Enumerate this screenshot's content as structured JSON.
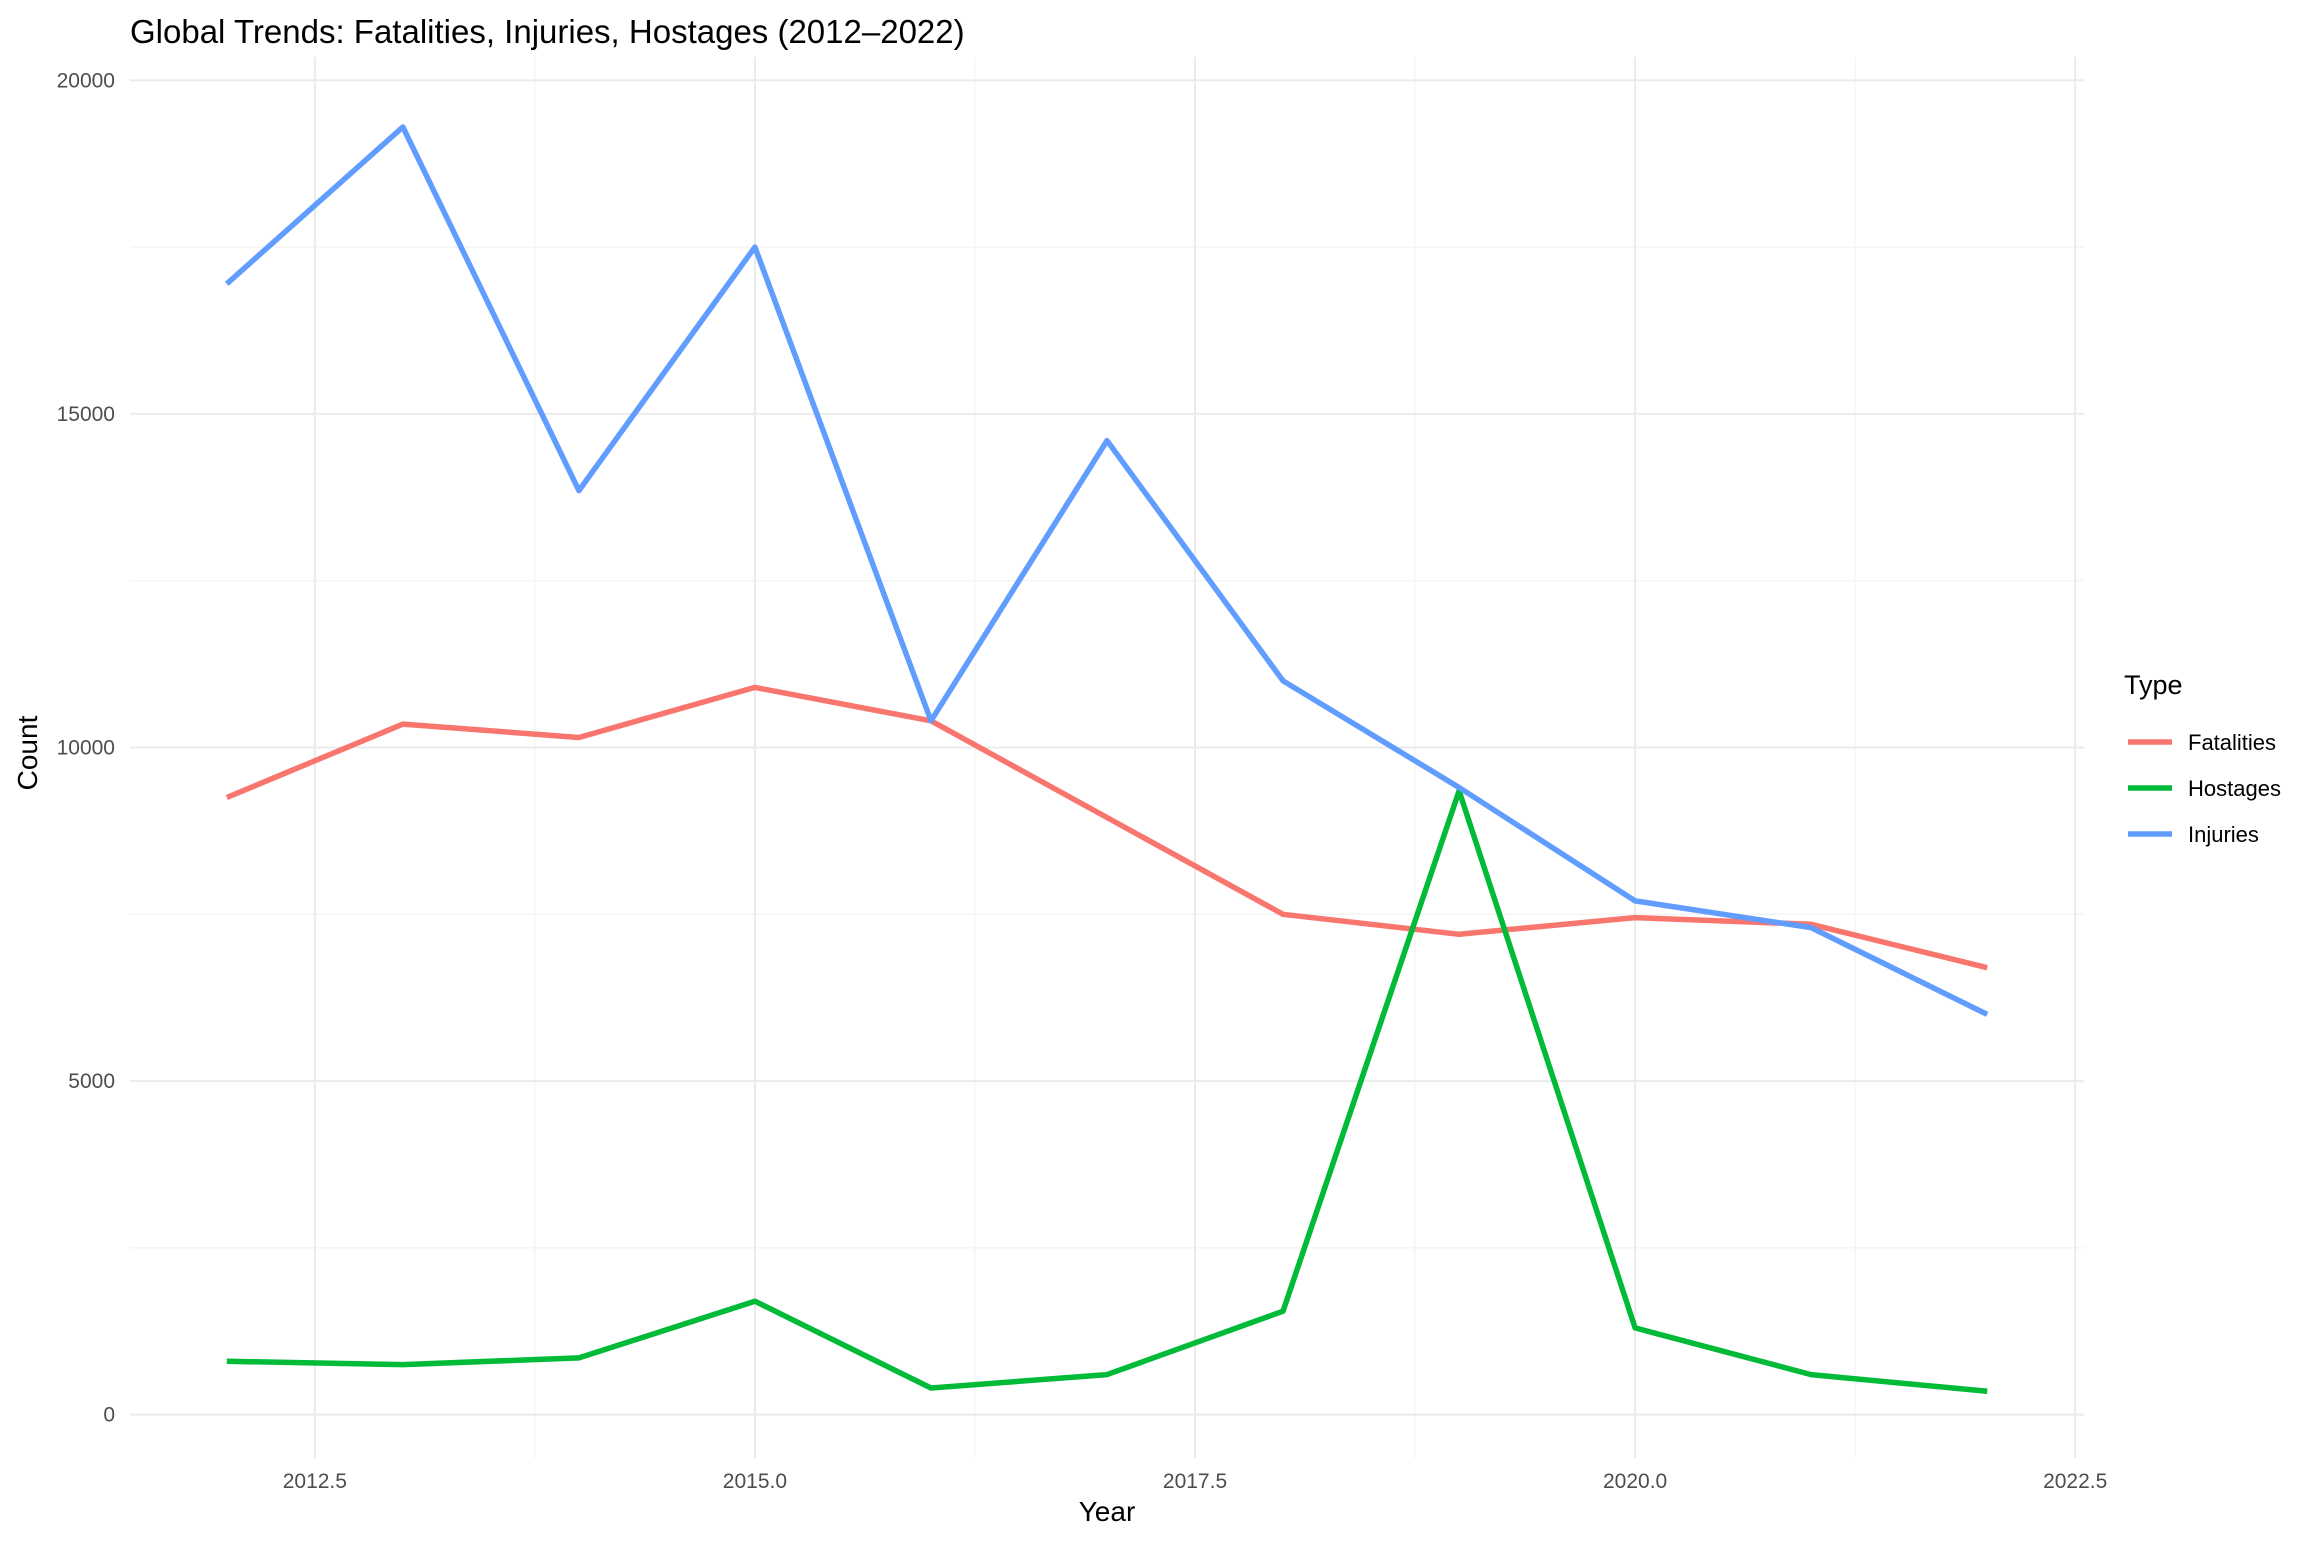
{
  "chart_data": {
    "type": "line",
    "title": "Global Trends: Fatalities, Injuries, Hostages (2012–2022)",
    "xlabel": "Year",
    "ylabel": "Count",
    "x": [
      2012,
      2013,
      2014,
      2015,
      2016,
      2017,
      2018,
      2019,
      2020,
      2021,
      2022
    ],
    "xlim": [
      2011.45,
      2022.55
    ],
    "ylim": [
      -650,
      20350
    ],
    "x_ticks": [
      2012.5,
      2015.0,
      2017.5,
      2020.0,
      2022.5
    ],
    "x_tick_labels": [
      "2012.5",
      "2015.0",
      "2017.5",
      "2020.0",
      "2022.5"
    ],
    "y_ticks": [
      0,
      5000,
      10000,
      15000,
      20000
    ],
    "y_tick_labels": [
      "0",
      "5000",
      "10000",
      "15000",
      "20000"
    ],
    "grid": true,
    "legend": {
      "title": "Type",
      "position": "right"
    },
    "series": [
      {
        "name": "Fatalities",
        "color": "#F8766D",
        "values": [
          9250,
          10350,
          10150,
          10900,
          10400,
          8950,
          7500,
          7200,
          7450,
          7350,
          6700
        ]
      },
      {
        "name": "Hostages",
        "color": "#00BA38",
        "values": [
          800,
          750,
          850,
          1700,
          400,
          600,
          1550,
          9350,
          1300,
          600,
          350
        ]
      },
      {
        "name": "Injuries",
        "color": "#619CFF",
        "values": [
          16950,
          19300,
          13850,
          17500,
          10400,
          14600,
          11000,
          9400,
          7700,
          7300,
          6000
        ]
      }
    ]
  }
}
